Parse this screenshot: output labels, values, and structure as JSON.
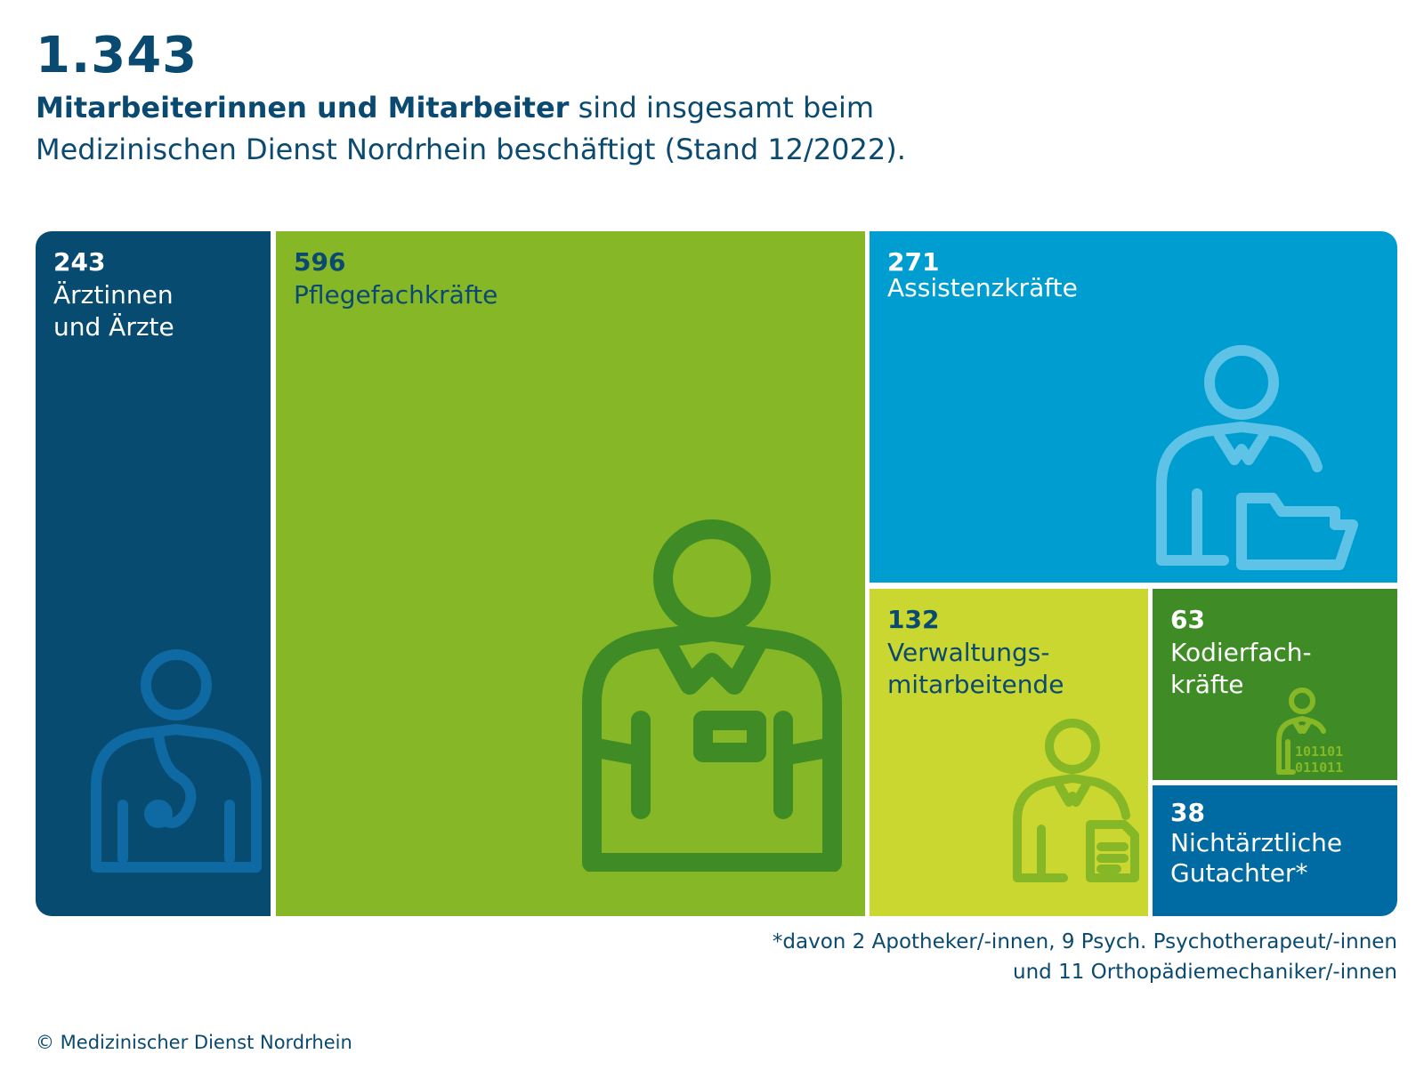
{
  "header": {
    "total": "1.343",
    "subtitle_bold": "Mitarbeiterinnen und Mitarbeiter",
    "subtitle_rest": " sind insgesamt beim Medizinischen Dienst Nordrhein beschäftigt (Stand 12/2022)."
  },
  "footnote": {
    "line1": "*davon 2 Apotheker/-innen, 9 Psych. Psychotherapeut/-innen",
    "line2": "und 11 Orthopädiemechaniker/-innen"
  },
  "copyright": "© Medizinischer Dienst Nordrhein",
  "colors": {
    "dark_blue": "#074b71",
    "green": "#86b726",
    "light_blue": "#009ed0",
    "lime": "#c9d730",
    "dark_green": "#3f8c27",
    "mid_blue": "#006ba2"
  },
  "chart_data": {
    "type": "treemap",
    "title": "1.343",
    "total": 1343,
    "categories": [
      "Ärztinnen und Ärzte",
      "Pflegefachkräfte",
      "Assistenzkräfte",
      "Verwaltungs-mitarbeitende",
      "Kodierfach-kräfte",
      "Nichtärztliche Gutachter*"
    ],
    "values": [
      243,
      596,
      271,
      132,
      63,
      38
    ],
    "tiles": [
      {
        "value": "243",
        "label": "Ärztinnen\nund Ärzte",
        "icon": "doctor-icon"
      },
      {
        "value": "596",
        "label": "Pflegefachkräfte",
        "icon": "nurse-icon"
      },
      {
        "value": "271",
        "label": "Assistenzkräfte",
        "icon": "assistant-folder-icon"
      },
      {
        "value": "132",
        "label": "Verwaltungs-\nmitarbeitende",
        "icon": "admin-document-icon"
      },
      {
        "value": "63",
        "label": "Kodierfach-\nkräfte",
        "icon": "coder-binary-icon",
        "binary_line1": "101101",
        "binary_line2": "011011"
      },
      {
        "value": "38",
        "label": "Nichtärztliche\nGutachter*",
        "icon": ""
      }
    ]
  }
}
